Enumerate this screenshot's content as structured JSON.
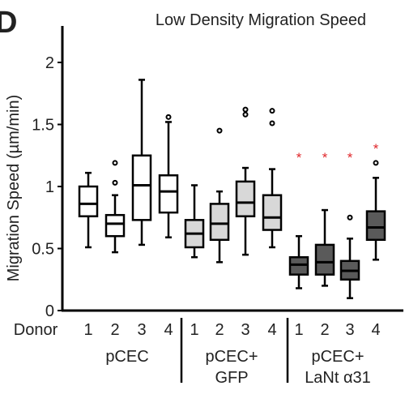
{
  "panel_label": "D",
  "chart_data": {
    "type": "boxplot",
    "title": "Low Density Migration Speed",
    "ylabel": "Migration Speed (µm/min)",
    "xlabel_prefix": "Donor",
    "ylim": [
      0,
      2.3
    ],
    "yticks": [
      "0",
      "0.5",
      "1",
      "1.5",
      "2"
    ],
    "ytick_values": [
      0,
      0.5,
      1,
      1.5,
      2
    ],
    "groups": [
      {
        "label": "pCEC",
        "label_lines": [
          "pCEC"
        ]
      },
      {
        "label": "pCEC+ GFP",
        "label_lines": [
          "pCEC+",
          "GFP"
        ]
      },
      {
        "label": "pCEC+ LaNt α31",
        "label_lines": [
          "pCEC+",
          "LaNt α31"
        ]
      }
    ],
    "colors": {
      "pCEC": "#ffffff",
      "pCEC+ GFP": "#d8d8d8",
      "pCEC+ LaNt α31": "#5a5a5a",
      "significance": "#e0282c"
    },
    "boxes": [
      {
        "group": 0,
        "donor": "1",
        "whisker_low": 0.51,
        "q1": 0.76,
        "median": 0.86,
        "q3": 1.0,
        "whisker_high": 1.11,
        "outliers": [],
        "sig": ""
      },
      {
        "group": 0,
        "donor": "2",
        "whisker_low": 0.47,
        "q1": 0.6,
        "median": 0.7,
        "q3": 0.77,
        "whisker_high": 0.93,
        "outliers": [
          1.03,
          1.19
        ],
        "sig": ""
      },
      {
        "group": 0,
        "donor": "3",
        "whisker_low": 0.53,
        "q1": 0.73,
        "median": 1.01,
        "q3": 1.25,
        "whisker_high": 1.86,
        "outliers": [],
        "sig": ""
      },
      {
        "group": 0,
        "donor": "4",
        "whisker_low": 0.59,
        "q1": 0.79,
        "median": 0.96,
        "q3": 1.09,
        "whisker_high": 1.52,
        "outliers": [
          1.56
        ],
        "sig": ""
      },
      {
        "group": 1,
        "donor": "1",
        "whisker_low": 0.43,
        "q1": 0.51,
        "median": 0.62,
        "q3": 0.73,
        "whisker_high": 1.01,
        "outliers": [],
        "sig": ""
      },
      {
        "group": 1,
        "donor": "2",
        "whisker_low": 0.39,
        "q1": 0.57,
        "median": 0.7,
        "q3": 0.86,
        "whisker_high": 0.96,
        "outliers": [
          1.45
        ],
        "sig": ""
      },
      {
        "group": 1,
        "donor": "3",
        "whisker_low": 0.45,
        "q1": 0.76,
        "median": 0.87,
        "q3": 1.04,
        "whisker_high": 1.15,
        "outliers": [
          1.58,
          1.62
        ],
        "sig": ""
      },
      {
        "group": 1,
        "donor": "4",
        "whisker_low": 0.51,
        "q1": 0.65,
        "median": 0.75,
        "q3": 0.93,
        "whisker_high": 1.14,
        "outliers": [
          1.51,
          1.61
        ],
        "sig": ""
      },
      {
        "group": 2,
        "donor": "1",
        "whisker_low": 0.18,
        "q1": 0.29,
        "median": 0.37,
        "q3": 0.43,
        "whisker_high": 0.6,
        "outliers": [],
        "sig": "*"
      },
      {
        "group": 2,
        "donor": "2",
        "whisker_low": 0.2,
        "q1": 0.29,
        "median": 0.39,
        "q3": 0.53,
        "whisker_high": 0.81,
        "outliers": [],
        "sig": "*"
      },
      {
        "group": 2,
        "donor": "3",
        "whisker_low": 0.1,
        "q1": 0.25,
        "median": 0.32,
        "q3": 0.4,
        "whisker_high": 0.58,
        "outliers": [
          0.75
        ],
        "sig": "*"
      },
      {
        "group": 2,
        "donor": "4",
        "whisker_low": 0.41,
        "q1": 0.57,
        "median": 0.67,
        "q3": 0.8,
        "whisker_high": 1.07,
        "outliers": [
          1.19
        ],
        "sig": "*"
      }
    ]
  }
}
